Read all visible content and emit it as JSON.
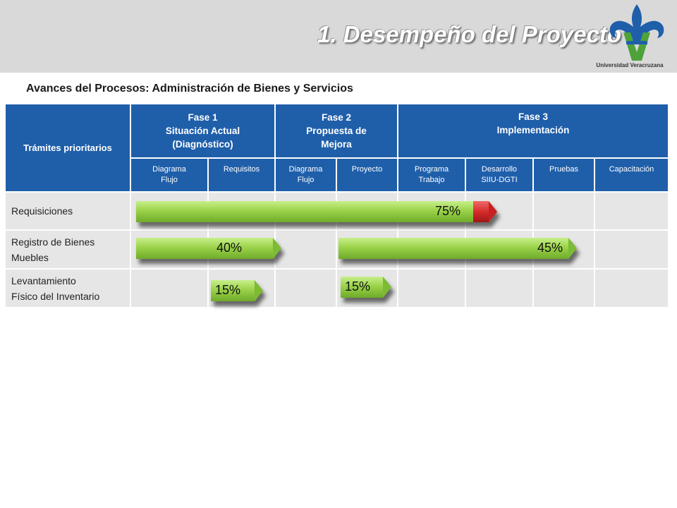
{
  "header": {
    "title": "1. Desempeño del Proyecto",
    "university": "Universidad Veracruzana",
    "logo_icon": "fleur-de-lis-v-icon"
  },
  "subtitle": "Avances del Procesos: Administración de Bienes y Servicios",
  "table": {
    "corner_header": "Trámites prioritarios",
    "phases": [
      {
        "line1": "Fase 1",
        "line2": "Situación Actual",
        "line3": "(Diagnóstico)"
      },
      {
        "line1": "Fase 2",
        "line2": "Propuesta de",
        "line3": "Mejora"
      },
      {
        "line1": "Fase 3",
        "line2": "Implementación",
        "line3": ""
      }
    ],
    "subheaders": [
      {
        "line1": "Diagrama",
        "line2": "Flujo"
      },
      {
        "line1": "Requisitos",
        "line2": ""
      },
      {
        "line1": "Diagrama",
        "line2": "Flujo"
      },
      {
        "line1": "Proyecto",
        "line2": ""
      },
      {
        "line1": "Programa",
        "line2": "Trabajo"
      },
      {
        "line1": "Desarrollo",
        "line2": "SIIU-DGTI"
      },
      {
        "line1": "Pruebas",
        "line2": ""
      },
      {
        "line1": "Capacitación",
        "line2": ""
      }
    ],
    "rows": [
      {
        "line1": "Requisiciones",
        "line2": ""
      },
      {
        "line1": "Registro de Bienes",
        "line2": "Muebles"
      },
      {
        "line1": "Levantamiento",
        "line2": "Físico del Inventario"
      }
    ]
  },
  "progress_bars": [
    {
      "row": 0,
      "label": "75%",
      "value": 75
    },
    {
      "row": 1,
      "label": "40%",
      "value": 40
    },
    {
      "row": 1,
      "label": "45%",
      "value": 45
    },
    {
      "row": 2,
      "label": "15%",
      "value": 15
    },
    {
      "row": 2,
      "label": "15%",
      "value": 15
    }
  ],
  "colors": {
    "header_blue": "#1f5faa",
    "bar_green": "#9bd34a",
    "bar_red": "#d62c2c",
    "cell_gray": "#e6e6e6"
  }
}
